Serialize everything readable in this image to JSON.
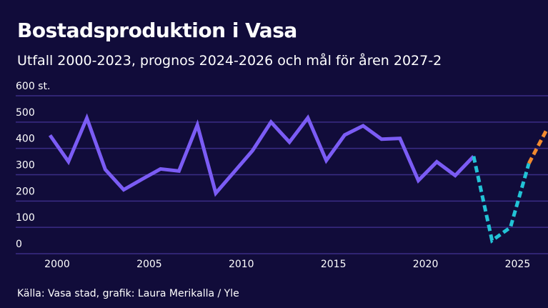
{
  "title": "Bostadsproduktion i Vasa",
  "subtitle": "Utfall 2000-2023, prognos 2024-2026 och mål för åren 2027-2",
  "source": "Källa: Vasa stad, grafik: Laura Merikalla / Yle",
  "chart_data": {
    "type": "line",
    "title": "Bostadsproduktion i Vasa",
    "subtitle": "Utfall 2000-2023, prognos 2024-2026 och mål för åren 2027-2",
    "ylabel_unit": "st.",
    "xlim": [
      2000,
      2027
    ],
    "ylim": [
      0,
      600
    ],
    "yticks": [
      0,
      100,
      200,
      300,
      400,
      500,
      600
    ],
    "ytick_labels": [
      "0",
      "100",
      "200",
      "300",
      "400",
      "500",
      "600 st."
    ],
    "xticks": [
      2000,
      2005,
      2010,
      2015,
      2020,
      2025
    ],
    "xtick_labels": [
      "2000",
      "2005",
      "2010",
      "2015",
      "2020",
      "2025"
    ],
    "grid": true,
    "series": [
      {
        "style": "solid",
        "color": "#7b5cf5",
        "x": [
          2000,
          2001,
          2002,
          2003,
          2004,
          2005,
          2006,
          2007,
          2008,
          2009,
          2010,
          2011,
          2012,
          2013,
          2014,
          2015,
          2016,
          2017,
          2018,
          2019,
          2020,
          2021,
          2022,
          2023
        ],
        "y": [
          450,
          350,
          515,
          320,
          243,
          283,
          322,
          314,
          489,
          230,
          311,
          392,
          500,
          424,
          516,
          354,
          451,
          486,
          435,
          438,
          278,
          349,
          297,
          370
        ]
      },
      {
        "style": "dashed",
        "color": "#22c3d6",
        "x": [
          2023,
          2024,
          2025,
          2026
        ],
        "y": [
          370,
          50,
          100,
          343
        ]
      },
      {
        "style": "dashed",
        "color": "#f28a2e",
        "x": [
          2026,
          2027
        ],
        "y": [
          343,
          475
        ]
      }
    ]
  }
}
